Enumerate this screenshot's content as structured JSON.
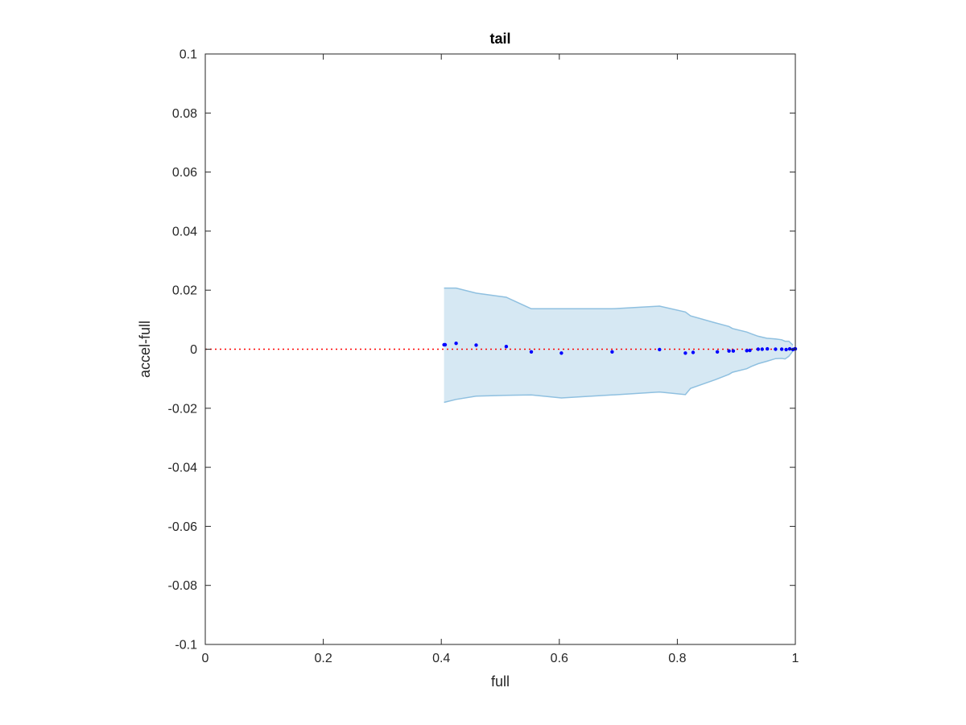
{
  "chart_data": {
    "type": "scatter",
    "title": "tail",
    "xlabel": "full",
    "ylabel": "accel-full",
    "xlim": [
      0,
      1
    ],
    "ylim": [
      -0.1,
      0.1
    ],
    "xticks": [
      "0",
      "0.2",
      "0.4",
      "0.6",
      "0.8",
      "1"
    ],
    "xtick_values": [
      0,
      0.2,
      0.4,
      0.6,
      0.8,
      1
    ],
    "yticks": [
      "0.1",
      "0.08",
      "0.06",
      "0.04",
      "0.02",
      "0",
      "-0.02",
      "-0.04",
      "-0.06",
      "-0.08",
      "-0.1"
    ],
    "ytick_values": [
      0.1,
      0.08,
      0.06,
      0.04,
      0.02,
      0,
      -0.02,
      -0.04,
      -0.06,
      -0.08,
      -0.1
    ],
    "grid": false,
    "reference_line": {
      "y": 0,
      "style": "dotted",
      "color": "#ff0000"
    },
    "band": {
      "color": "#d6e8f3",
      "edge_color": "#8fc0e0",
      "x": [
        0.4046,
        0.4251,
        0.4591,
        0.5101,
        0.5525,
        0.6035,
        0.6895,
        0.7699,
        0.8137,
        0.8224,
        0.8649,
        0.8876,
        0.8934,
        0.9178,
        0.9257,
        0.937,
        0.9516,
        0.9665,
        0.977,
        0.9826,
        0.989,
        0.9959
      ],
      "upper": [
        0.0207,
        0.0207,
        0.019,
        0.0176,
        0.0137,
        0.0137,
        0.0137,
        0.0146,
        0.0126,
        0.0113,
        0.0089,
        0.0077,
        0.007,
        0.0058,
        0.0052,
        0.0044,
        0.0037,
        0.0035,
        0.0032,
        0.0027,
        0.0027,
        0.0014
      ],
      "lower": [
        -0.018,
        -0.017,
        -0.0159,
        -0.0156,
        -0.0155,
        -0.0165,
        -0.0155,
        -0.0145,
        -0.0154,
        -0.0133,
        -0.0103,
        -0.0085,
        -0.0078,
        -0.0066,
        -0.0058,
        -0.0049,
        -0.0041,
        -0.0032,
        -0.0031,
        -0.0033,
        -0.0024,
        -0.0006
      ]
    },
    "series": [
      {
        "color": "#0000ff",
        "x": [
          0.4046,
          0.4066,
          0.4251,
          0.4591,
          0.5101,
          0.5525,
          0.6035,
          0.6895,
          0.7699,
          0.8137,
          0.8268,
          0.8678,
          0.8876,
          0.8948,
          0.9178,
          0.9229,
          0.937,
          0.9438,
          0.9525,
          0.9665,
          0.977,
          0.9844,
          0.9904,
          0.9959,
          0.999,
          1.0
        ],
        "y": [
          0.0015,
          0.0015,
          0.002,
          0.0014,
          0.0009,
          -0.0009,
          -0.0013,
          -0.0009,
          -0.0001,
          -0.0013,
          -0.0011,
          -0.0009,
          -0.0006,
          -0.0006,
          -0.0005,
          -0.0004,
          0.0,
          0.0,
          0.0001,
          0.0,
          0.0,
          -0.0001,
          0.0001,
          -0.0001,
          0.0001,
          0.0001
        ]
      }
    ]
  }
}
